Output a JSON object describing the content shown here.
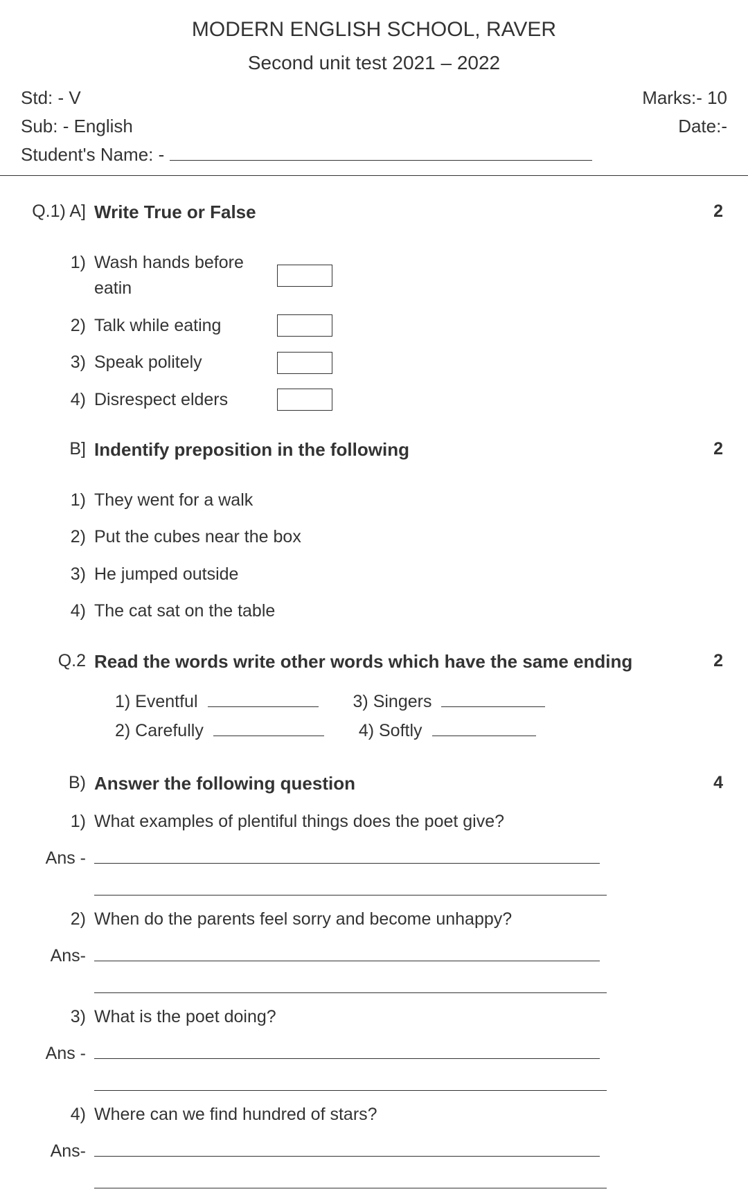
{
  "colors": {
    "text": "#333333",
    "background": "#ffffff",
    "line": "#333333"
  },
  "typography": {
    "base_font_size": 25,
    "heading_font_size": 30,
    "font_family": "Arial"
  },
  "header": {
    "school": "MODERN ENGLISH SCHOOL, RAVER",
    "test": "Second unit test 2021 – 2022"
  },
  "meta": {
    "std_label": "Std: - V",
    "marks_label": "Marks:- 10",
    "sub_label": "Sub: - English",
    "date_label": "Date:-",
    "name_label": "Student's Name: - "
  },
  "sections": {
    "q1a": {
      "num": "Q.1) A]",
      "title": "Write True or False",
      "marks": "2",
      "items": [
        {
          "n": "1)",
          "text": "Wash hands before eatin"
        },
        {
          "n": "2)",
          "text": "Talk while eating"
        },
        {
          "n": "3)",
          "text": "Speak politely"
        },
        {
          "n": "4)",
          "text": "Disrespect elders"
        }
      ]
    },
    "q1b": {
      "num": "B]",
      "title": "Indentify preposition in the following",
      "marks": "2",
      "items": [
        {
          "n": "1)",
          "text": "They went for a walk"
        },
        {
          "n": "2)",
          "text": "Put the cubes near the box"
        },
        {
          "n": "3)",
          "text": "He jumped outside"
        },
        {
          "n": "4)",
          "text": "The cat sat on the table"
        }
      ]
    },
    "q2": {
      "num": "Q.2",
      "title": "Read the words write other words which have the same ending",
      "marks": "2",
      "words": {
        "w1_label": "1) Eventful",
        "w2_label": "2) Carefully",
        "w3_label": "3) Singers",
        "w4_label": "4) Softly"
      }
    },
    "q2b": {
      "num": "B)",
      "title": "Answer the following question",
      "marks": "4",
      "questions": [
        {
          "n": "1)",
          "ans": "Ans -",
          "text": "What examples of plentiful things does the poet give?"
        },
        {
          "n": "2)",
          "ans": "Ans-",
          "text": "When do the parents feel sorry and become unhappy?"
        },
        {
          "n": "3)",
          "ans": "Ans -",
          "text": "What is the poet doing?"
        },
        {
          "n": "4)",
          "ans": "Ans-",
          "text": "Where can we find hundred of stars?"
        }
      ]
    }
  }
}
